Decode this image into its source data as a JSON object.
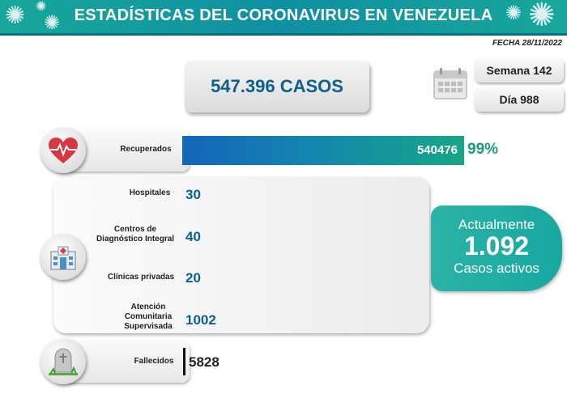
{
  "header": {
    "title": "ESTADÍSTICAS DEL CORONAVIRUS EN VENEZUELA"
  },
  "fecha": "FECHA 28/11/2022",
  "total": {
    "label": "547.396 CASOS"
  },
  "semana": "Semana 142",
  "dia": "Día 988",
  "recuperados": {
    "label": "Recuperados",
    "value": "540476",
    "percent": "99%",
    "fraction": 0.99
  },
  "hospitalizacion": [
    {
      "label": "Hospitales",
      "value": "30"
    },
    {
      "label": "Centros de\nDiagnóstico Integral",
      "value": "40"
    },
    {
      "label": "Clínicas privadas",
      "value": "20"
    },
    {
      "label": "Atención\nComunitaria\nSupervisada",
      "value": "1002"
    }
  ],
  "activos": {
    "line1": "Actualmente",
    "value": "1.092",
    "line2": "Casos activos"
  },
  "fallecidos": {
    "label": "Fallecidos",
    "value": "5828"
  },
  "colors": {
    "banner": "#18a79a",
    "value_blue": "#0d5f8c",
    "percent_green": "#17a07a",
    "active_teal": "#2bb3a6"
  },
  "icons": [
    "virus-icon",
    "calendar-icon",
    "heart-pulse-icon",
    "hospital-icon",
    "tombstone-icon"
  ]
}
